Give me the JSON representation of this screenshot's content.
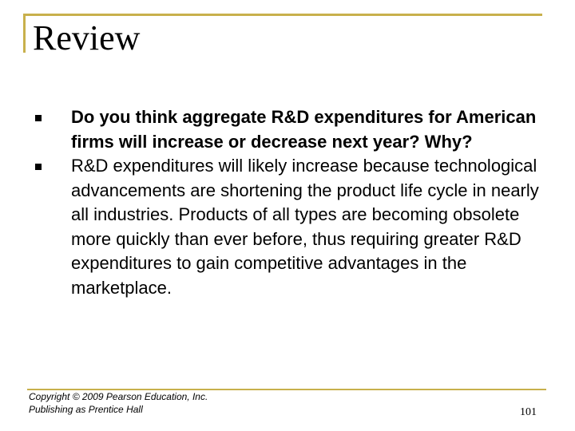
{
  "slide": {
    "title": "Review",
    "bullets": [
      {
        "text": "Do you think aggregate R&D expenditures for American firms will increase or decrease next year?  Why?"
      },
      {
        "text": "R&D expenditures will likely increase because technological advancements are shortening the product life cycle in nearly all industries. Products of all types are becoming obsolete more quickly than ever before, thus requiring greater R&D expenditures to gain competitive advantages in the marketplace."
      }
    ],
    "footer": {
      "line1": "Copyright © 2009 Pearson Education, Inc.",
      "line2": "Publishing as Prentice Hall"
    },
    "page_number": "101",
    "colors": {
      "accent": "#c8b04c"
    }
  }
}
